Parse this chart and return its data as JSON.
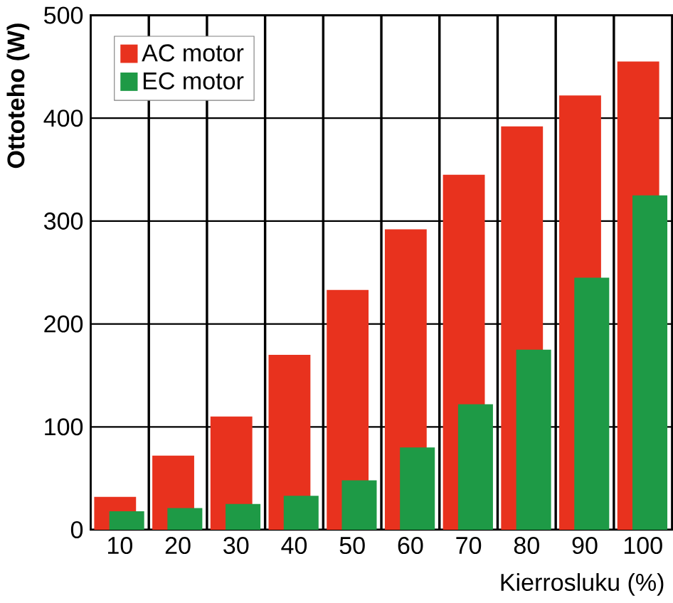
{
  "chart_data": {
    "type": "bar",
    "xlabel": "Kierrosluku (%)",
    "ylabel": "Ottoteho (W)",
    "categories": [
      "10",
      "20",
      "30",
      "40",
      "50",
      "60",
      "70",
      "80",
      "90",
      "100"
    ],
    "series": [
      {
        "name": "AC motor",
        "color": "#e8321e",
        "values": [
          32,
          72,
          110,
          170,
          233,
          292,
          345,
          392,
          422,
          455
        ]
      },
      {
        "name": "EC motor",
        "color": "#1e9a46",
        "values": [
          18,
          21,
          25,
          33,
          48,
          80,
          122,
          175,
          245,
          325
        ]
      }
    ],
    "ylim": [
      0,
      500
    ],
    "yticks": [
      0,
      100,
      200,
      300,
      400,
      500
    ],
    "grid": true,
    "legend": "top left"
  }
}
